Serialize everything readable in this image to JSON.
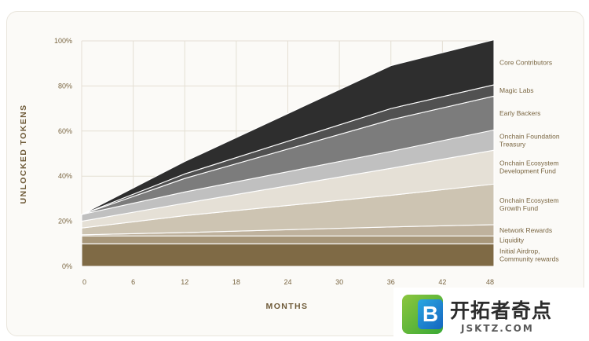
{
  "chart_data": {
    "type": "area",
    "stacked": true,
    "xlabel": "MONTHS",
    "ylabel": "UNLOCKED TOKENS",
    "xlim": [
      0,
      48
    ],
    "ylim": [
      0,
      100
    ],
    "x_ticks": [
      "0",
      "6",
      "12",
      "18",
      "24",
      "30",
      "36",
      "42",
      "48"
    ],
    "y_ticks": [
      "0%",
      "20%",
      "40%",
      "60%",
      "80%",
      "100%"
    ],
    "grid": true,
    "legend_position": "right",
    "x": [
      0,
      12,
      36,
      48
    ],
    "series": [
      {
        "name": "Initial Airdrop, Community rewards",
        "color": "#7f6a45",
        "values": [
          10,
          10,
          10,
          10
        ]
      },
      {
        "name": "Liquidity",
        "color": "#a8977a",
        "values": [
          3.5,
          3.5,
          3.5,
          3.5
        ]
      },
      {
        "name": "Network Rewards",
        "color": "#bfb29d",
        "values": [
          0.5,
          1.5,
          4,
          5
        ]
      },
      {
        "name": "Onchain Ecosystem Growth Fund",
        "color": "#cdc4b2",
        "values": [
          3,
          7.5,
          14,
          18
        ]
      },
      {
        "name": "Onchain Ecosystem Development Fund",
        "color": "#e5e0d6",
        "values": [
          3,
          5.5,
          12,
          15
        ]
      },
      {
        "name": "Onchain Foundation Treasury",
        "color": "#c0c0c0",
        "values": [
          3,
          5,
          7.5,
          9
        ]
      },
      {
        "name": "Early Backers",
        "color": "#7c7c7c",
        "values": [
          0,
          6,
          14,
          15
        ]
      },
      {
        "name": "Magic Labs",
        "color": "#515151",
        "values": [
          0,
          2,
          5,
          5
        ]
      },
      {
        "name": "Core Contributors",
        "color": "#2e2e2e",
        "values": [
          0,
          5.5,
          19,
          20
        ]
      }
    ]
  },
  "watermark": {
    "logo_letter": "B",
    "title": "开拓者奇点",
    "url": "JSKTZ.COM"
  }
}
